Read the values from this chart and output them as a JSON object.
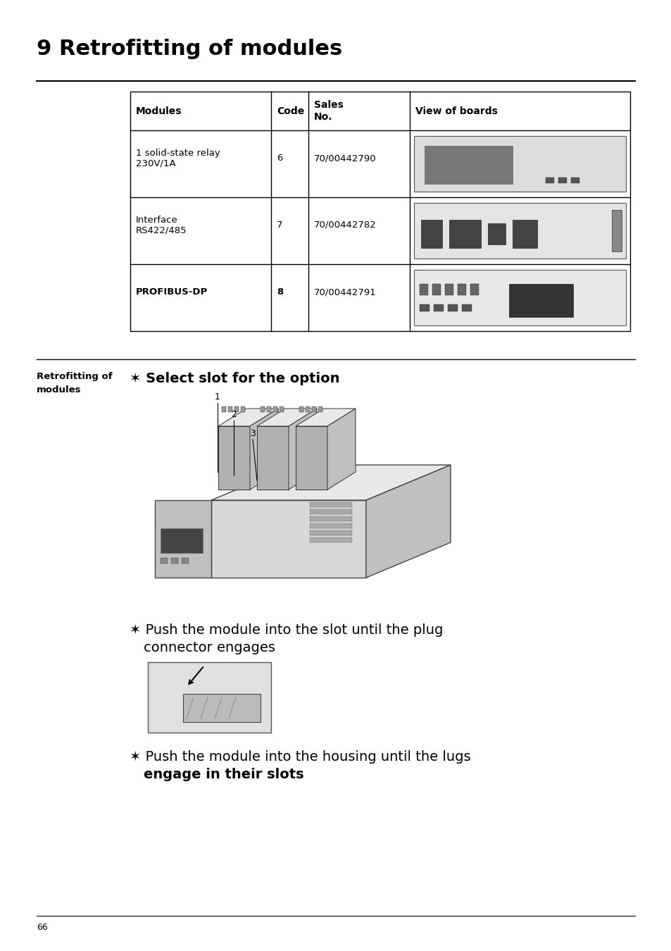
{
  "title": "9 Retrofitting of modules",
  "page_number": "66",
  "background_color": "#ffffff",
  "text_color": "#000000",
  "table_headers": [
    "Modules",
    "Code",
    "Sales\nNo.",
    "View of boards"
  ],
  "table_rows": [
    [
      "1 solid-state relay\n230V/1A",
      "6",
      "70/00442790"
    ],
    [
      "Interface\nRS422/485",
      "7",
      "70/00442782"
    ],
    [
      "PROFIBUS-DP",
      "8",
      "70/00442791"
    ]
  ],
  "sidebar_label": "Retrofitting of\nmodules",
  "bullet_char": "✶",
  "instr1_text": " Select slot for the option",
  "instr2_line1": " Push the module into the slot until the plug",
  "instr2_line2": "   connector engages",
  "instr3_line1": " Push the module into the housing until the lugs",
  "instr3_line2": "   engage in their slots"
}
